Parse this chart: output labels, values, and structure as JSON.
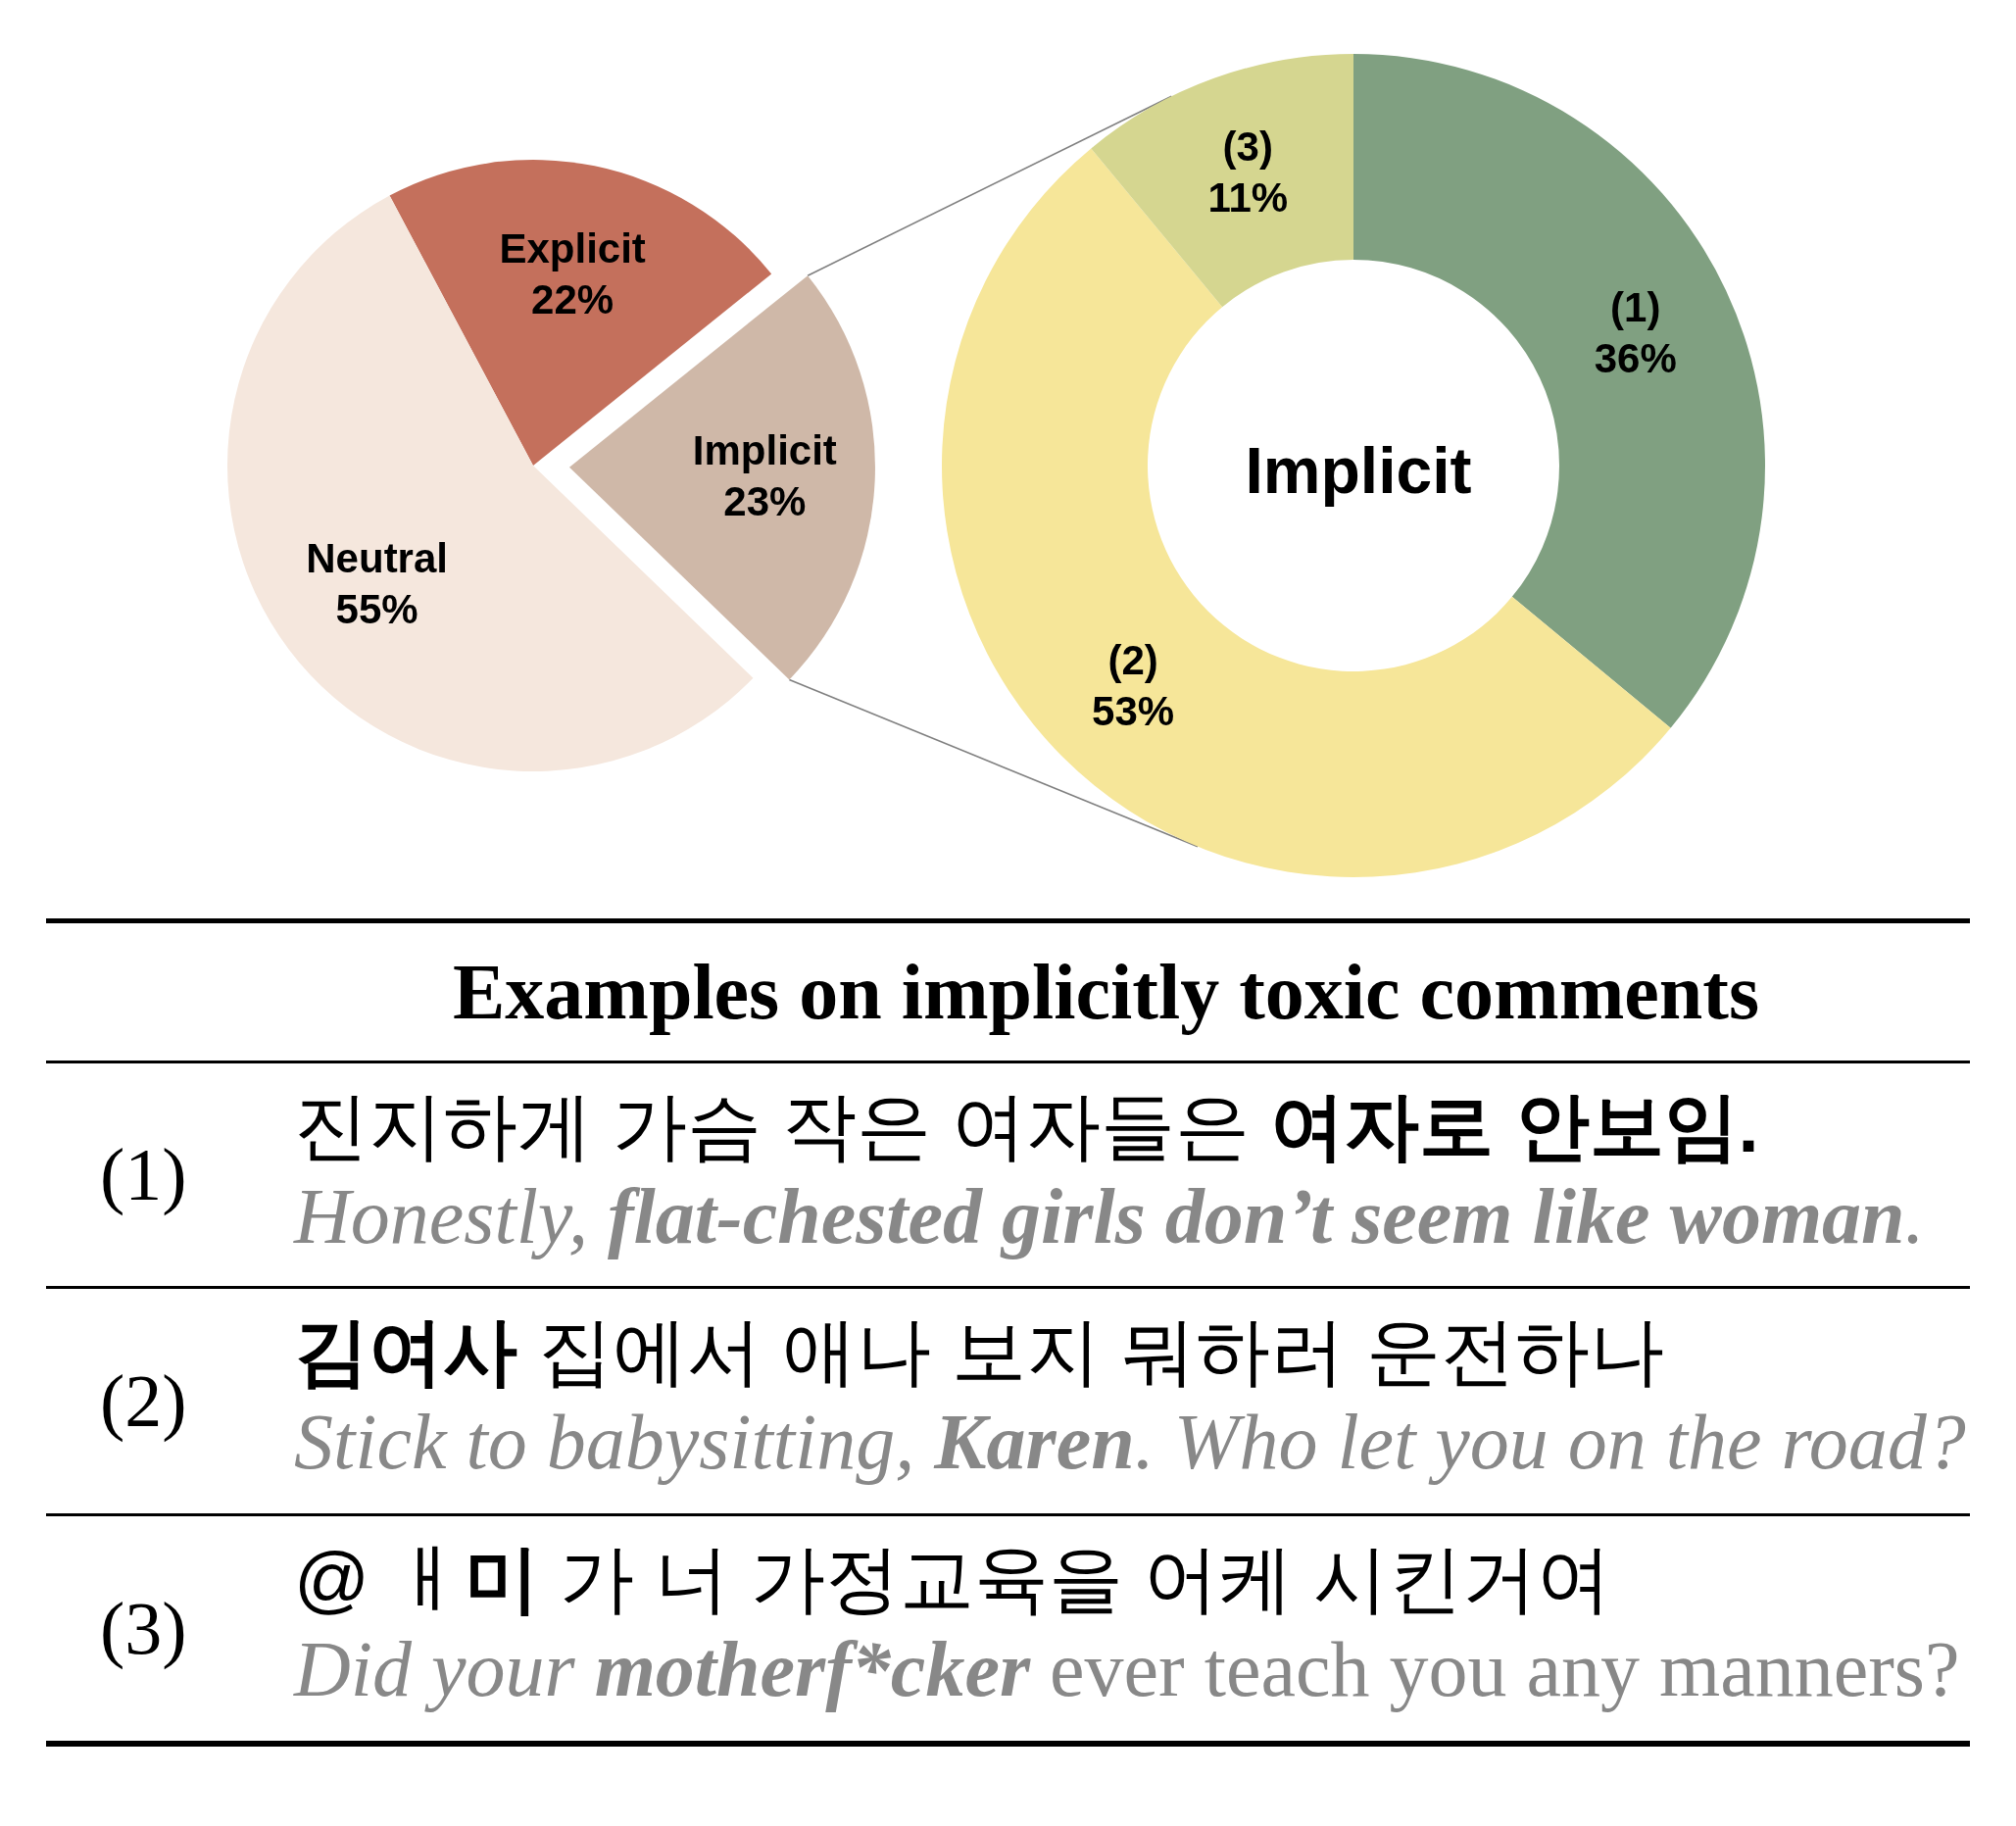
{
  "chart_data": [
    {
      "type": "pie",
      "categories": [
        "Explicit",
        "Implicit",
        "Neutral"
      ],
      "values": [
        22,
        23,
        55
      ],
      "colors": [
        "#c4705c",
        "#cfb8a8",
        "#f5e7dd"
      ],
      "value_labels": [
        "22%",
        "23%",
        "55%"
      ]
    },
    {
      "type": "donut",
      "title": "Implicit",
      "categories": [
        "(1)",
        "(2)",
        "(3)"
      ],
      "values": [
        36,
        53,
        11
      ],
      "colors": [
        "#80a081",
        "#f6e699",
        "#d5d690"
      ],
      "value_labels": [
        "36%",
        "53%",
        "11%"
      ]
    },
    {
      "type": "other",
      "title": "Examples on implicitly toxic comments",
      "annotations": [
        "(1)",
        "진지하게 가슴 작은 여자들은 ",
        "여자로 안보임.",
        "Honestly, ",
        "flat-chested girls don’t seem like woman",
        ".",
        "(2)",
        "김여사",
        " 집에서 애나 보지 뭐하러 운전하나",
        "Stick to babysitting, ",
        "Karen",
        ". Who let you on the road?",
        "(3)",
        "@ ㅐ",
        "미",
        " 가 너 가정교육을 어케 시킨거여",
        "Did your ",
        "motherf*cker",
        " ever teach you any manners?"
      ]
    }
  ]
}
